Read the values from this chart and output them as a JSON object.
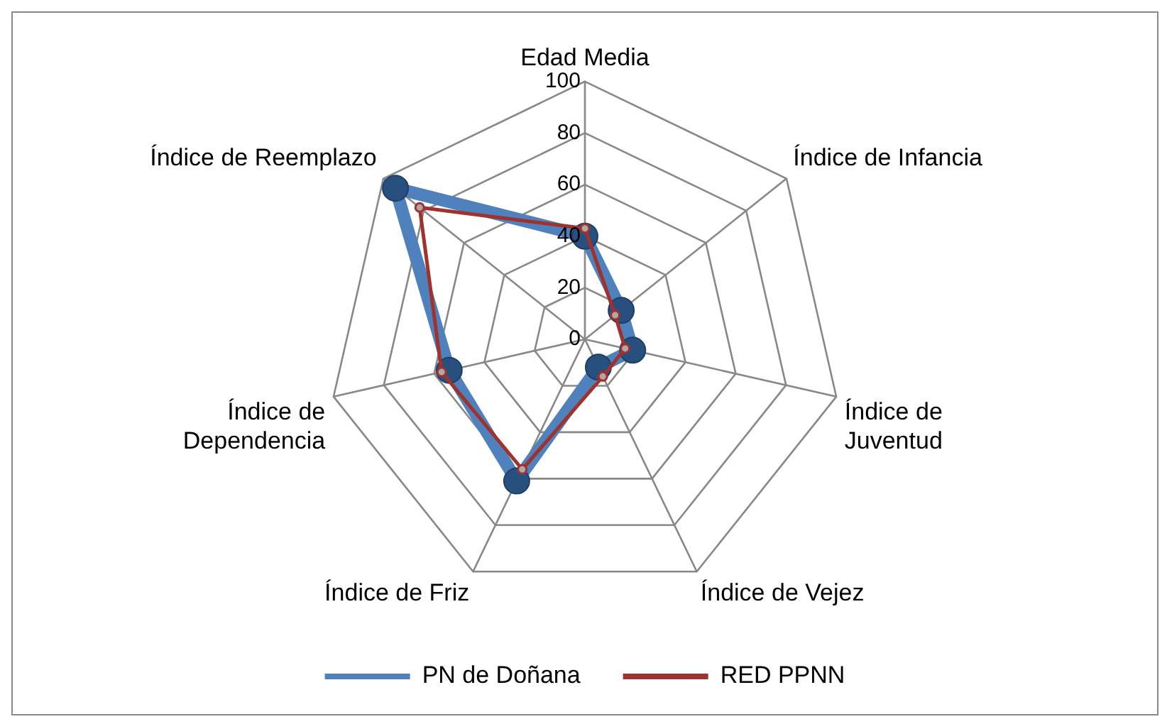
{
  "chart_data": {
    "type": "radar",
    "categories": [
      "Edad Media",
      "Índice de Infancia",
      "Índice de Juventud",
      "Índice de Vejez",
      "Índice de Friz",
      "Índice de Dependencia",
      "Índice de Reemplazo"
    ],
    "series": [
      {
        "name": "PN de Doñana",
        "color": "#4f81bd",
        "values": [
          40,
          18,
          19,
          12,
          61,
          54,
          94
        ]
      },
      {
        "name": "RED PPNN",
        "color": "#a0322d",
        "values": [
          43,
          15,
          16,
          16,
          56,
          57,
          82
        ]
      }
    ],
    "ylim": [
      0,
      100
    ],
    "yticks": [
      0,
      20,
      40,
      60,
      80,
      100
    ],
    "grid": true,
    "legend": "bottom",
    "marker": "circle"
  }
}
